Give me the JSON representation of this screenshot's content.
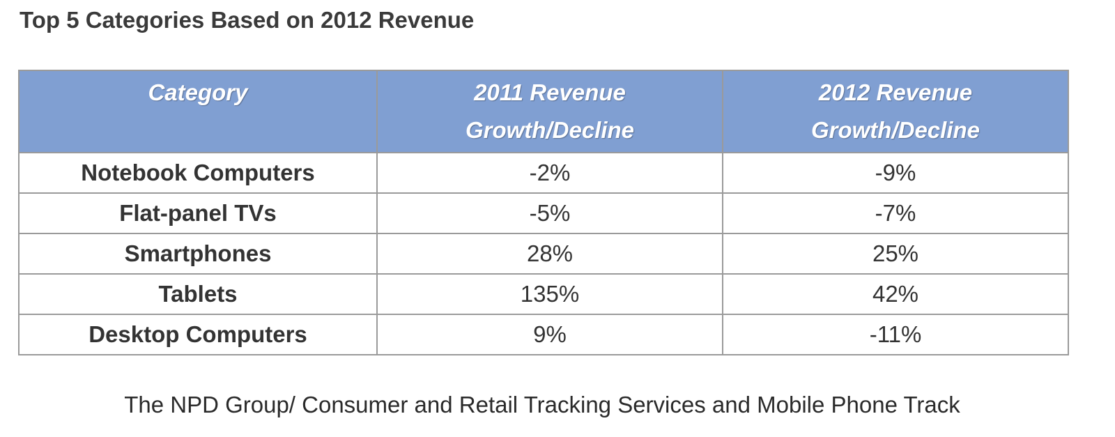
{
  "title": "Top 5 Categories Based on 2012 Revenue",
  "table": {
    "header": [
      [
        "Category"
      ],
      [
        "2011 Revenue",
        "Growth/Decline"
      ],
      [
        "2012 Revenue",
        "Growth/Decline"
      ]
    ],
    "rows": [
      [
        "Notebook Computers",
        "-2%",
        "-9%"
      ],
      [
        "Flat-panel TVs",
        "-5%",
        "-7%"
      ],
      [
        "Smartphones",
        "28%",
        "25%"
      ],
      [
        "Tablets",
        "135%",
        "42%"
      ],
      [
        "Desktop Computers",
        "9%",
        "-11%"
      ]
    ]
  },
  "source": "The NPD Group/ Consumer and Retail Tracking Services and Mobile Phone Track"
}
